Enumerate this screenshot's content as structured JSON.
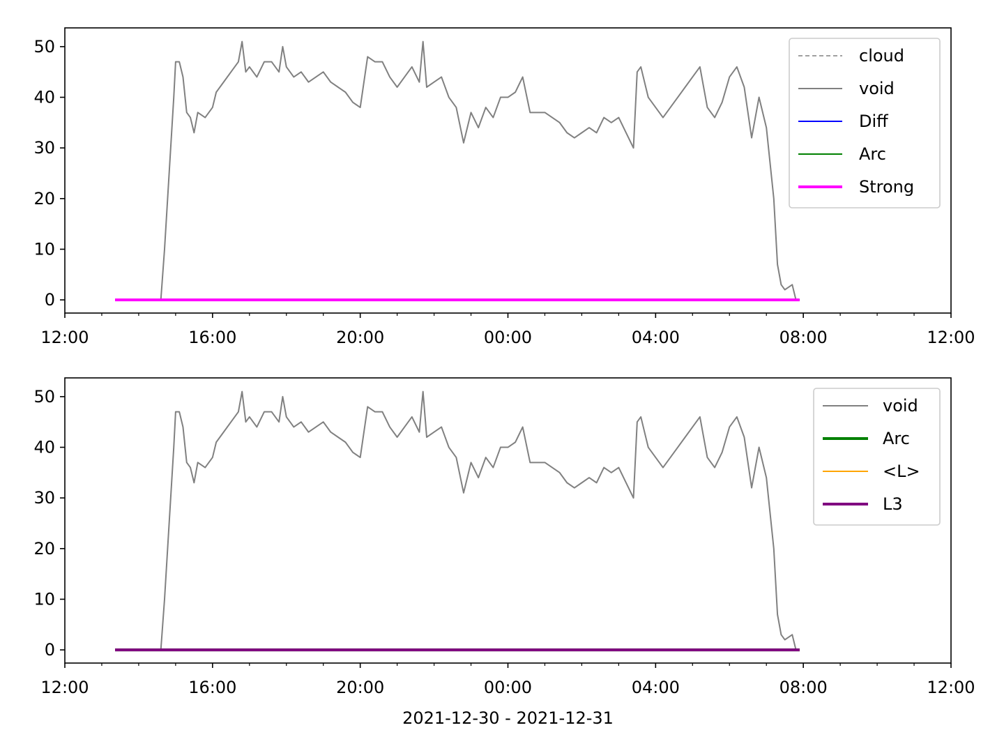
{
  "chart_data": [
    {
      "type": "line",
      "xlim": [
        12,
        36
      ],
      "ylim": [
        -2.6,
        53.7
      ],
      "xticks": [
        {
          "value": 12,
          "label": "12:00"
        },
        {
          "value": 16,
          "label": "16:00"
        },
        {
          "value": 20,
          "label": "20:00"
        },
        {
          "value": 24,
          "label": "00:00"
        },
        {
          "value": 28,
          "label": "04:00"
        },
        {
          "value": 32,
          "label": "08:00"
        },
        {
          "value": 36,
          "label": "12:00"
        }
      ],
      "xminorticks": [
        13,
        14,
        15,
        17,
        18,
        19,
        21,
        22,
        23,
        25,
        26,
        27,
        29,
        30,
        31,
        33,
        34,
        35
      ],
      "yticks": [
        0,
        10,
        20,
        30,
        40,
        50
      ],
      "legend": "upper right",
      "series": [
        {
          "name": "cloud",
          "color": "#808080",
          "linewidth": 1.5,
          "dash": true,
          "x": [
            13.36,
            31.9
          ],
          "values": [
            0,
            0
          ]
        },
        {
          "name": "void",
          "color": "#808080",
          "linewidth": 2,
          "x": [
            13.36,
            14.6,
            14.7,
            14.85,
            14.95,
            15.0,
            15.1,
            15.2,
            15.3,
            15.4,
            15.5,
            15.6,
            15.8,
            16.0,
            16.1,
            16.3,
            16.5,
            16.7,
            16.8,
            16.9,
            17.0,
            17.2,
            17.4,
            17.6,
            17.8,
            17.9,
            18.0,
            18.2,
            18.4,
            18.6,
            18.8,
            19.0,
            19.2,
            19.4,
            19.6,
            19.8,
            20.0,
            20.2,
            20.4,
            20.6,
            20.8,
            21.0,
            21.2,
            21.4,
            21.6,
            21.7,
            21.8,
            22.0,
            22.2,
            22.4,
            22.6,
            22.8,
            23.0,
            23.2,
            23.4,
            23.6,
            23.8,
            24.0,
            24.2,
            24.4,
            24.6,
            24.8,
            25.0,
            25.2,
            25.4,
            25.6,
            25.8,
            26.0,
            26.2,
            26.4,
            26.6,
            26.8,
            27.0,
            27.2,
            27.4,
            27.5,
            27.6,
            27.8,
            28.0,
            28.2,
            28.4,
            28.6,
            28.8,
            29.0,
            29.2,
            29.4,
            29.6,
            29.8,
            30.0,
            30.2,
            30.4,
            30.6,
            30.8,
            31.0,
            31.2,
            31.3,
            31.4,
            31.5,
            31.7,
            31.8
          ],
          "values": [
            0,
            0,
            10,
            28,
            40,
            47,
            47,
            44,
            37,
            36,
            33,
            37,
            36,
            38,
            41,
            43,
            45,
            47,
            51,
            45,
            46,
            44,
            47,
            47,
            45,
            50,
            46,
            44,
            45,
            43,
            44,
            45,
            43,
            42,
            41,
            39,
            38,
            48,
            47,
            47,
            44,
            42,
            44,
            46,
            43,
            51,
            42,
            43,
            44,
            40,
            38,
            31,
            37,
            34,
            38,
            36,
            40,
            40,
            41,
            44,
            37,
            37,
            37,
            36,
            35,
            33,
            32,
            33,
            34,
            33,
            36,
            35,
            36,
            33,
            30,
            45,
            46,
            40,
            38,
            36,
            38,
            40,
            42,
            44,
            46,
            38,
            36,
            39,
            44,
            46,
            42,
            32,
            40,
            34,
            20,
            7,
            3,
            2,
            3,
            0
          ]
        },
        {
          "name": "Diff",
          "color": "#0000ff",
          "linewidth": 2,
          "x": [
            13.36,
            31.9
          ],
          "values": [
            0,
            0
          ]
        },
        {
          "name": "Arc",
          "color": "#008000",
          "linewidth": 2,
          "x": [
            13.36,
            31.9
          ],
          "values": [
            0,
            0
          ]
        },
        {
          "name": "Strong",
          "color": "#ff00ff",
          "linewidth": 4,
          "x": [
            13.36,
            31.9
          ],
          "values": [
            0,
            0
          ]
        }
      ]
    },
    {
      "type": "line",
      "xlim": [
        12,
        36
      ],
      "ylim": [
        -2.6,
        53.7
      ],
      "xticks": [
        {
          "value": 12,
          "label": "12:00"
        },
        {
          "value": 16,
          "label": "16:00"
        },
        {
          "value": 20,
          "label": "20:00"
        },
        {
          "value": 24,
          "label": "00:00"
        },
        {
          "value": 28,
          "label": "04:00"
        },
        {
          "value": 32,
          "label": "08:00"
        },
        {
          "value": 36,
          "label": "12:00"
        }
      ],
      "xminorticks": [
        13,
        14,
        15,
        17,
        18,
        19,
        21,
        22,
        23,
        25,
        26,
        27,
        29,
        30,
        31,
        33,
        34,
        35
      ],
      "yticks": [
        0,
        10,
        20,
        30,
        40,
        50
      ],
      "legend": "upper right",
      "x_label": "2021-12-30 - 2021-12-31",
      "series": [
        {
          "name": "void",
          "color": "#808080",
          "linewidth": 2,
          "x": [
            13.36,
            14.6,
            14.7,
            14.85,
            14.95,
            15.0,
            15.1,
            15.2,
            15.3,
            15.4,
            15.5,
            15.6,
            15.8,
            16.0,
            16.1,
            16.3,
            16.5,
            16.7,
            16.8,
            16.9,
            17.0,
            17.2,
            17.4,
            17.6,
            17.8,
            17.9,
            18.0,
            18.2,
            18.4,
            18.6,
            18.8,
            19.0,
            19.2,
            19.4,
            19.6,
            19.8,
            20.0,
            20.2,
            20.4,
            20.6,
            20.8,
            21.0,
            21.2,
            21.4,
            21.6,
            21.7,
            21.8,
            22.0,
            22.2,
            22.4,
            22.6,
            22.8,
            23.0,
            23.2,
            23.4,
            23.6,
            23.8,
            24.0,
            24.2,
            24.4,
            24.6,
            24.8,
            25.0,
            25.2,
            25.4,
            25.6,
            25.8,
            26.0,
            26.2,
            26.4,
            26.6,
            26.8,
            27.0,
            27.2,
            27.4,
            27.5,
            27.6,
            27.8,
            28.0,
            28.2,
            28.4,
            28.6,
            28.8,
            29.0,
            29.2,
            29.4,
            29.6,
            29.8,
            30.0,
            30.2,
            30.4,
            30.6,
            30.8,
            31.0,
            31.2,
            31.3,
            31.4,
            31.5,
            31.7,
            31.8
          ],
          "values": [
            0,
            0,
            10,
            28,
            40,
            47,
            47,
            44,
            37,
            36,
            33,
            37,
            36,
            38,
            41,
            43,
            45,
            47,
            51,
            45,
            46,
            44,
            47,
            47,
            45,
            50,
            46,
            44,
            45,
            43,
            44,
            45,
            43,
            42,
            41,
            39,
            38,
            48,
            47,
            47,
            44,
            42,
            44,
            46,
            43,
            51,
            42,
            43,
            44,
            40,
            38,
            31,
            37,
            34,
            38,
            36,
            40,
            40,
            41,
            44,
            37,
            37,
            37,
            36,
            35,
            33,
            32,
            33,
            34,
            33,
            36,
            35,
            36,
            33,
            30,
            45,
            46,
            40,
            38,
            36,
            38,
            40,
            42,
            44,
            46,
            38,
            36,
            39,
            44,
            46,
            42,
            32,
            40,
            34,
            20,
            7,
            3,
            2,
            3,
            0
          ]
        },
        {
          "name": "Arc",
          "color": "#008000",
          "linewidth": 4,
          "x": [
            13.36,
            31.9
          ],
          "values": [
            0,
            0
          ]
        },
        {
          "name": "<L>",
          "color": "#ffa500",
          "linewidth": 2,
          "x": [
            13.36,
            31.9
          ],
          "values": [
            0,
            0
          ]
        },
        {
          "name": "L3",
          "color": "#800080",
          "linewidth": 4,
          "x": [
            13.36,
            31.9
          ],
          "values": [
            0,
            0
          ]
        }
      ]
    }
  ]
}
